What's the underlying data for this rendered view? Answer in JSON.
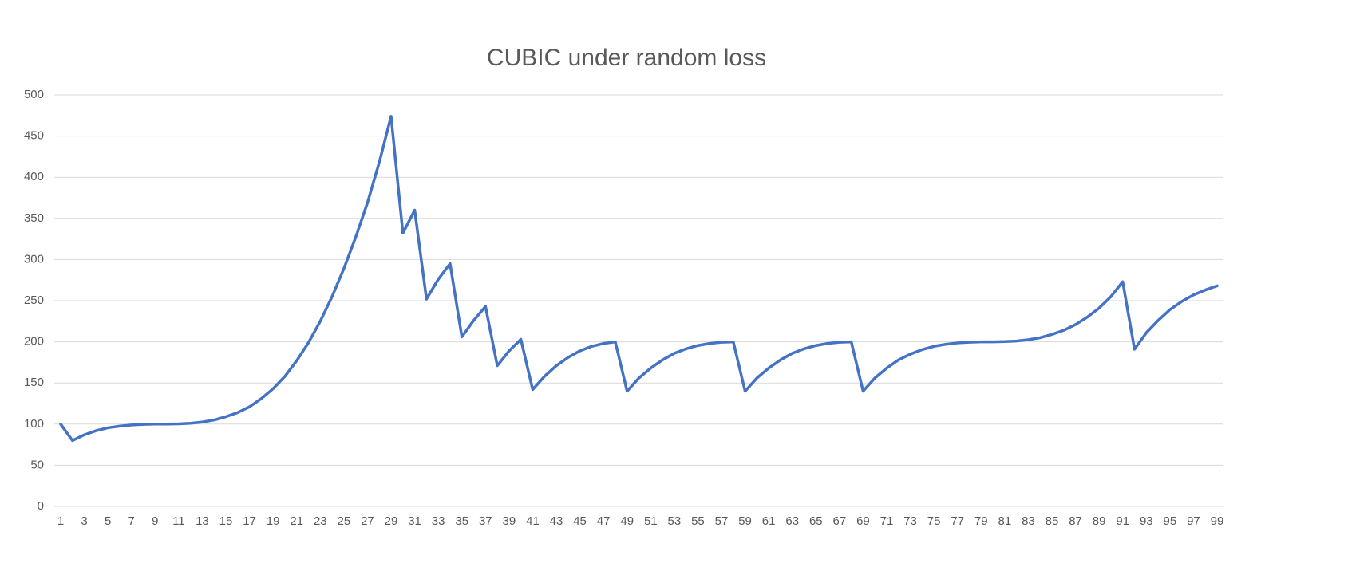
{
  "chart_data": {
    "type": "line",
    "title": "CUBIC under random loss",
    "categories": [
      1,
      null,
      3,
      null,
      5,
      null,
      7,
      null,
      9,
      null,
      11,
      null,
      13,
      null,
      15,
      null,
      17,
      null,
      19,
      null,
      21,
      null,
      23,
      null,
      25,
      null,
      27,
      null,
      29,
      null,
      31,
      null,
      33,
      null,
      35,
      null,
      37,
      null,
      39,
      null,
      41,
      null,
      43,
      null,
      45,
      null,
      47,
      null,
      49,
      null,
      51,
      null,
      53,
      null,
      55,
      null,
      57,
      null,
      59,
      null,
      61,
      null,
      63,
      null,
      65,
      null,
      67,
      null,
      69,
      null,
      71,
      null,
      73,
      null,
      75,
      null,
      77,
      null,
      79,
      null,
      81,
      null,
      83,
      null,
      85,
      null,
      87,
      null,
      89,
      null,
      91,
      null,
      93,
      null,
      95,
      null,
      97,
      null,
      99
    ],
    "series": [
      {
        "name": "CUBIC",
        "color": "#4472c4",
        "values": [
          100,
          80,
          87,
          92,
          95.5,
          97.5,
          99,
          99.7,
          100,
          100,
          100.3,
          101,
          102.5,
          105,
          109,
          114,
          121,
          131,
          143,
          158,
          177,
          199,
          225,
          255,
          289,
          327,
          369,
          418,
          474,
          332,
          360,
          252,
          276,
          295,
          206,
          226,
          243,
          171,
          189,
          203,
          142,
          158,
          171,
          181,
          189,
          194.5,
          198,
          200,
          140,
          156,
          168,
          178,
          186,
          191.5,
          195.5,
          198,
          199.5,
          200,
          140,
          156,
          168,
          178,
          186,
          191.5,
          195.5,
          198,
          199.5,
          200,
          140,
          156,
          168,
          178,
          185,
          190.5,
          194.5,
          197,
          198.7,
          199.5,
          200,
          200,
          200.3,
          201,
          202.5,
          205,
          209,
          214,
          221,
          230,
          241,
          255,
          273,
          191,
          211,
          226,
          239,
          249,
          257,
          263,
          268
        ]
      }
    ],
    "ylim": [
      0,
      500
    ],
    "yticks": [
      0,
      50,
      100,
      150,
      200,
      250,
      300,
      350,
      400,
      450,
      500
    ],
    "grid": true
  }
}
